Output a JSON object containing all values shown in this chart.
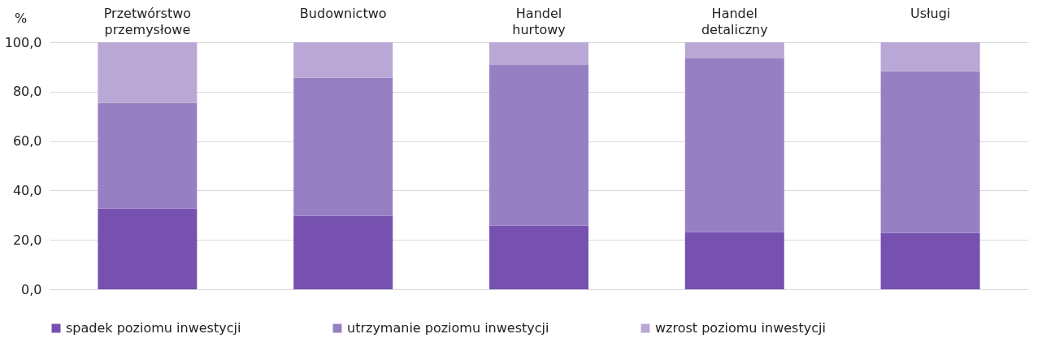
{
  "chart_data": {
    "type": "bar",
    "stacked": true,
    "ylabel": "%",
    "categories": [
      "Przetwórstwo przemysłowe",
      "Budownictwo",
      "Handel hurtowy",
      "Handel detaliczny",
      "Usługi"
    ],
    "series": [
      {
        "name": "spadek poziomu inwestycji",
        "color": "#7651b0",
        "values": [
          32.7,
          29.8,
          25.7,
          23.2,
          22.8
        ]
      },
      {
        "name": "utrzymanie poziomu inwestycji",
        "color": "#9680c3",
        "values": [
          42.7,
          55.9,
          65.1,
          70.2,
          65.4
        ]
      },
      {
        "name": "wzrost poziomu inwestycji",
        "color": "#b9a7d6",
        "values": [
          24.6,
          14.3,
          9.2,
          6.6,
          11.8
        ]
      }
    ],
    "ylim": [
      0,
      100
    ],
    "yticks": [
      {
        "value": 0,
        "label": "0,0"
      },
      {
        "value": 20,
        "label": "20,0"
      },
      {
        "value": 40,
        "label": "40,0"
      },
      {
        "value": 60,
        "label": "60,0"
      },
      {
        "value": 80,
        "label": "80,0"
      },
      {
        "value": 100,
        "label": "100,0"
      }
    ],
    "grid": "y",
    "legend": "bottom"
  }
}
